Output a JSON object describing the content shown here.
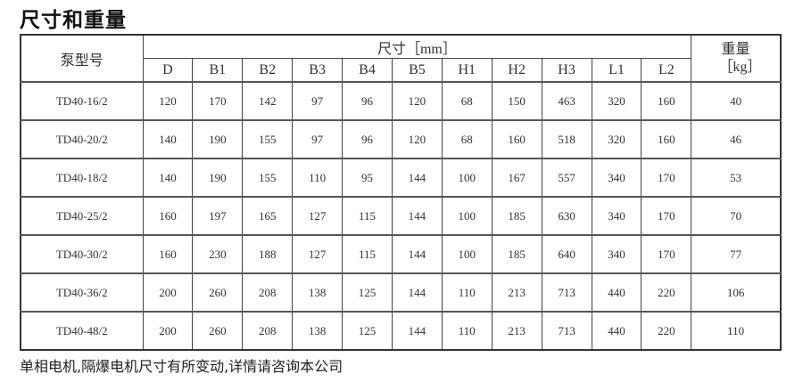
{
  "title": "尺寸和重量",
  "table": {
    "model_header": "泵型号",
    "dimensions_header": "尺寸［mm］",
    "weight_header": "重量［kg］",
    "columns": [
      "D",
      "B1",
      "B2",
      "B3",
      "B4",
      "B5",
      "H1",
      "H2",
      "H3",
      "L1",
      "L2"
    ],
    "rows": [
      {
        "model": "TD40-16/2",
        "values": [
          "120",
          "170",
          "142",
          "97",
          "96",
          "120",
          "68",
          "150",
          "463",
          "320",
          "160"
        ],
        "weight": "40"
      },
      {
        "model": "TD40-20/2",
        "values": [
          "140",
          "190",
          "155",
          "97",
          "96",
          "120",
          "68",
          "160",
          "518",
          "320",
          "160"
        ],
        "weight": "46"
      },
      {
        "model": "TD40-18/2",
        "values": [
          "140",
          "190",
          "155",
          "110",
          "95",
          "144",
          "100",
          "167",
          "557",
          "340",
          "170"
        ],
        "weight": "53"
      },
      {
        "model": "TD40-25/2",
        "values": [
          "160",
          "197",
          "165",
          "127",
          "115",
          "144",
          "100",
          "185",
          "630",
          "340",
          "170"
        ],
        "weight": "70"
      },
      {
        "model": "TD40-30/2",
        "values": [
          "160",
          "230",
          "188",
          "127",
          "115",
          "144",
          "100",
          "185",
          "640",
          "340",
          "170"
        ],
        "weight": "77"
      },
      {
        "model": "TD40-36/2",
        "values": [
          "200",
          "260",
          "208",
          "138",
          "125",
          "144",
          "110",
          "213",
          "713",
          "440",
          "220"
        ],
        "weight": "106"
      },
      {
        "model": "TD40-48/2",
        "values": [
          "200",
          "260",
          "208",
          "138",
          "125",
          "144",
          "110",
          "213",
          "713",
          "440",
          "220"
        ],
        "weight": "110"
      }
    ]
  },
  "note": "单相电机,隔爆电机尺寸有所变动,详情请咨询本公司"
}
